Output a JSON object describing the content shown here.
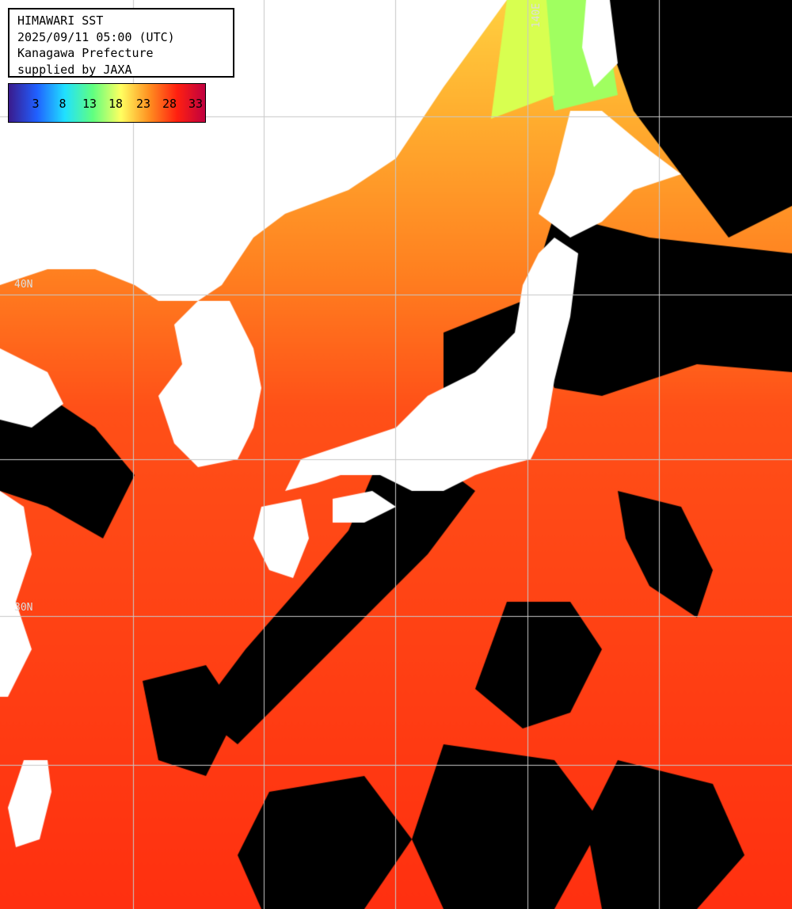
{
  "header": {
    "line1": "HIMAWARI SST",
    "line2": "2025/09/11 05:00 (UTC)",
    "line3": "Kanagawa Prefecture",
    "line4": "supplied by JAXA"
  },
  "legend": {
    "ticks": [
      "3",
      "8",
      "13",
      "18",
      "23",
      "28",
      "33"
    ],
    "values": [
      3,
      8,
      13,
      18,
      23,
      28,
      33
    ],
    "colors": [
      "#3a1a8c",
      "#2060ff",
      "#20e0ff",
      "#60ff80",
      "#ffff60",
      "#ff9020",
      "#ff2010",
      "#c00040"
    ]
  },
  "grid_labels": {
    "lon": "140E",
    "lat1": "40N",
    "lat2": "30N"
  },
  "map_colors": {
    "land": "#ffffff",
    "cloud": "#000000",
    "grid": "#c8c8c8",
    "warm": "#ff3010",
    "mid": "#ff8020",
    "cool": "#ffd040",
    "cold": "#a0ff60"
  }
}
